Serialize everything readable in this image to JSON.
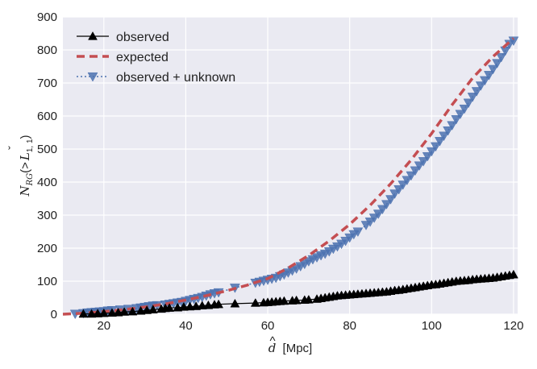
{
  "chart_data": {
    "type": "line",
    "xlabel": "[Mpc]",
    "xlabel_symbol": "d",
    "ylabel_parts": {
      "main": "N",
      "sub": "RG",
      "paren_open": "(>",
      "symbol": "L",
      "symbol_sub": "1, 1",
      "paren_close": ")"
    },
    "xlim": [
      10,
      121
    ],
    "ylim": [
      0,
      900
    ],
    "x_ticks": [
      20,
      40,
      60,
      80,
      100,
      120
    ],
    "y_ticks": [
      0,
      100,
      200,
      300,
      400,
      500,
      600,
      700,
      800,
      900
    ],
    "grid": true,
    "legend_position": "top-left",
    "series": [
      {
        "name": "observed",
        "color": "#000000",
        "style": "solid-line-triangle-up",
        "points": [
          [
            15,
            1
          ],
          [
            17,
            1
          ],
          [
            18.5,
            2
          ],
          [
            20,
            3
          ],
          [
            22,
            4
          ],
          [
            23.5,
            5
          ],
          [
            25,
            7
          ],
          [
            27,
            8
          ],
          [
            29,
            10
          ],
          [
            30.5,
            12
          ],
          [
            32,
            14
          ],
          [
            34,
            16
          ],
          [
            35,
            18
          ],
          [
            36,
            19
          ],
          [
            38,
            20
          ],
          [
            39.5,
            22
          ],
          [
            41,
            23
          ],
          [
            42.5,
            24
          ],
          [
            44,
            26
          ],
          [
            45.5,
            27
          ],
          [
            47,
            29
          ],
          [
            48,
            30
          ],
          [
            52,
            32
          ],
          [
            57,
            34
          ],
          [
            59,
            35
          ],
          [
            60,
            36
          ],
          [
            61,
            37
          ],
          [
            62,
            38
          ],
          [
            63,
            39
          ],
          [
            64,
            40
          ],
          [
            66,
            41
          ],
          [
            67,
            42
          ],
          [
            69,
            43
          ],
          [
            70,
            44
          ],
          [
            72,
            46
          ],
          [
            73,
            48
          ],
          [
            74,
            50
          ],
          [
            75,
            52
          ],
          [
            76,
            54
          ],
          [
            77,
            56
          ],
          [
            78,
            57
          ],
          [
            79,
            58
          ],
          [
            80,
            59
          ],
          [
            81,
            60
          ],
          [
            82,
            61
          ],
          [
            83,
            62
          ],
          [
            84,
            63
          ],
          [
            85,
            64
          ],
          [
            86,
            65
          ],
          [
            87,
            66
          ],
          [
            88,
            67
          ],
          [
            89,
            68
          ],
          [
            90,
            70
          ],
          [
            91,
            72
          ],
          [
            92,
            73
          ],
          [
            93,
            75
          ],
          [
            94,
            77
          ],
          [
            95,
            79
          ],
          [
            96,
            81
          ],
          [
            97,
            83
          ],
          [
            98,
            85
          ],
          [
            99,
            87
          ],
          [
            100,
            89
          ],
          [
            101,
            90
          ],
          [
            102,
            92
          ],
          [
            103,
            94
          ],
          [
            104,
            96
          ],
          [
            105,
            98
          ],
          [
            106,
            100
          ],
          [
            107,
            101
          ],
          [
            108,
            102
          ],
          [
            109,
            103
          ],
          [
            110,
            105
          ],
          [
            111,
            106
          ],
          [
            112,
            107
          ],
          [
            113,
            108
          ],
          [
            114,
            109
          ],
          [
            115,
            110
          ],
          [
            116,
            112
          ],
          [
            117,
            114
          ],
          [
            118,
            116
          ],
          [
            119,
            118
          ],
          [
            120,
            120
          ]
        ]
      },
      {
        "name": "expected",
        "color": "#c44e52",
        "style": "dashed-line",
        "points": [
          [
            10,
            0
          ],
          [
            15,
            3
          ],
          [
            20,
            8
          ],
          [
            25,
            14
          ],
          [
            30,
            22
          ],
          [
            35,
            31
          ],
          [
            40,
            43
          ],
          [
            45,
            56
          ],
          [
            50,
            71
          ],
          [
            55,
            88
          ],
          [
            60,
            108
          ],
          [
            65,
            140
          ],
          [
            70,
            178
          ],
          [
            75,
            222
          ],
          [
            80,
            272
          ],
          [
            85,
            330
          ],
          [
            90,
            395
          ],
          [
            95,
            467
          ],
          [
            100,
            547
          ],
          [
            105,
            634
          ],
          [
            110,
            715
          ],
          [
            115,
            780
          ],
          [
            120,
            835
          ]
        ]
      },
      {
        "name": "observed + unknown",
        "color": "#4c72b0",
        "style": "dotted-line-triangle-down",
        "points": [
          [
            13,
            1
          ],
          [
            15,
            3
          ],
          [
            16,
            5
          ],
          [
            17,
            6
          ],
          [
            18,
            7
          ],
          [
            19,
            8
          ],
          [
            20,
            9
          ],
          [
            21,
            11
          ],
          [
            22,
            12
          ],
          [
            24,
            14
          ],
          [
            26,
            16
          ],
          [
            28,
            18
          ],
          [
            29,
            20
          ],
          [
            30,
            22
          ],
          [
            31,
            24
          ],
          [
            32,
            26
          ],
          [
            33,
            27
          ],
          [
            35,
            29
          ],
          [
            36,
            31
          ],
          [
            37,
            33
          ],
          [
            38,
            35
          ],
          [
            39,
            37
          ],
          [
            40,
            40
          ],
          [
            41,
            43
          ],
          [
            42,
            46
          ],
          [
            43,
            49
          ],
          [
            44,
            52
          ],
          [
            45,
            56
          ],
          [
            46,
            60
          ],
          [
            47,
            63
          ],
          [
            48,
            66
          ],
          [
            52,
            80
          ],
          [
            57,
            95
          ],
          [
            58,
            98
          ],
          [
            59,
            101
          ],
          [
            60,
            104
          ],
          [
            61,
            107
          ],
          [
            62,
            110
          ],
          [
            63,
            115
          ],
          [
            64,
            120
          ],
          [
            65,
            126
          ],
          [
            66,
            132
          ],
          [
            67,
            138
          ],
          [
            68,
            145
          ],
          [
            69,
            152
          ],
          [
            70,
            160
          ],
          [
            71,
            166
          ],
          [
            72,
            172
          ],
          [
            73,
            178
          ],
          [
            74,
            183
          ],
          [
            75,
            190
          ],
          [
            76,
            198
          ],
          [
            77,
            205
          ],
          [
            78,
            213
          ],
          [
            79,
            222
          ],
          [
            80,
            232
          ],
          [
            81,
            242
          ],
          [
            82,
            250
          ],
          [
            84,
            270
          ],
          [
            85,
            280
          ],
          [
            86,
            292
          ],
          [
            87,
            304
          ],
          [
            88,
            318
          ],
          [
            89,
            333
          ],
          [
            90,
            348
          ],
          [
            91,
            365
          ],
          [
            92,
            378
          ],
          [
            93,
            392
          ],
          [
            94,
            406
          ],
          [
            95,
            420
          ],
          [
            96,
            435
          ],
          [
            97,
            450
          ],
          [
            98,
            463
          ],
          [
            99,
            478
          ],
          [
            100,
            493
          ],
          [
            101,
            508
          ],
          [
            102,
            524
          ],
          [
            103,
            540
          ],
          [
            104,
            556
          ],
          [
            105,
            572
          ],
          [
            106,
            590
          ],
          [
            107,
            606
          ],
          [
            108,
            622
          ],
          [
            109,
            640
          ],
          [
            110,
            658
          ],
          [
            111,
            675
          ],
          [
            112,
            692
          ],
          [
            113,
            708
          ],
          [
            114,
            724
          ],
          [
            115,
            742
          ],
          [
            116,
            760
          ],
          [
            117,
            778
          ],
          [
            118,
            798
          ],
          [
            119,
            818
          ],
          [
            120,
            828
          ]
        ]
      }
    ]
  }
}
